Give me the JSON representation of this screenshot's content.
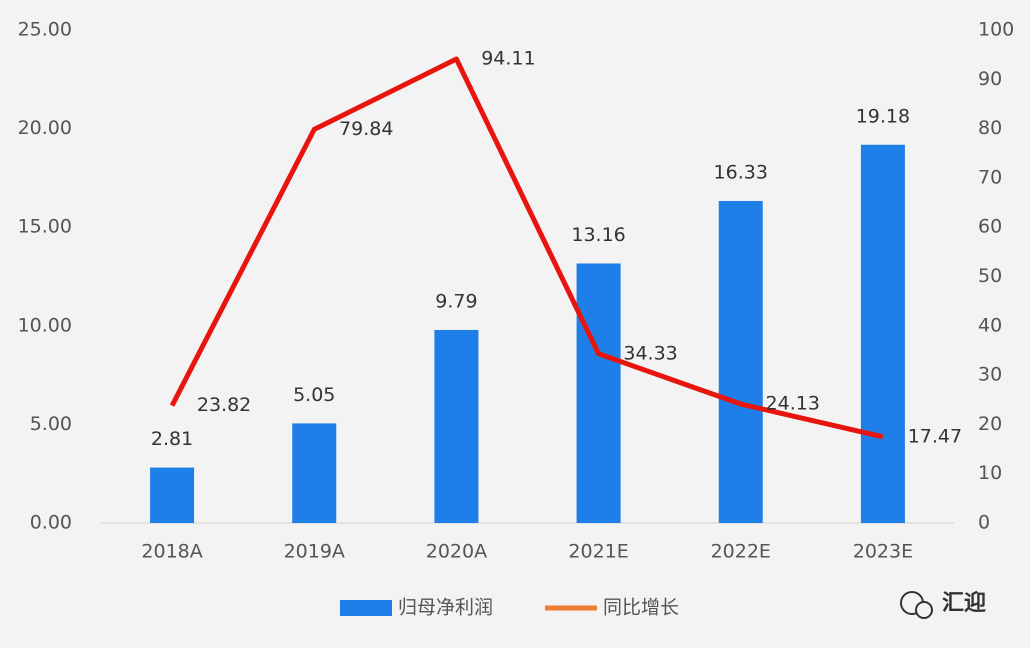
{
  "chart_data": {
    "type": "combo",
    "categories": [
      "2018A",
      "2019A",
      "2020A",
      "2021E",
      "2022E",
      "2023E"
    ],
    "series": [
      {
        "name": "归母净利润",
        "type": "bar",
        "color": "#1e7fe8",
        "values": [
          2.81,
          5.05,
          9.79,
          13.16,
          16.33,
          19.18
        ]
      },
      {
        "name": "同比增长",
        "type": "line",
        "axis": "y2",
        "color": "#e8150e",
        "legend_color": "#ed7d31",
        "values": [
          23.82,
          79.84,
          94.11,
          34.33,
          24.13,
          17.47
        ]
      }
    ],
    "ylim": [
      0,
      25
    ],
    "yticks": [
      {
        "value": 0,
        "label": "0.00"
      },
      {
        "value": 5,
        "label": "5.00"
      },
      {
        "value": 10,
        "label": "10.00"
      },
      {
        "value": 15,
        "label": "15.00"
      },
      {
        "value": 20,
        "label": "20.00"
      },
      {
        "value": 25,
        "label": "25.00"
      }
    ],
    "y2lim": [
      0,
      100
    ],
    "y2ticks": [
      0,
      10,
      20,
      30,
      40,
      50,
      60,
      70,
      80,
      90,
      100
    ],
    "grid": false,
    "legend": "bottom",
    "watermark": "汇迎"
  }
}
